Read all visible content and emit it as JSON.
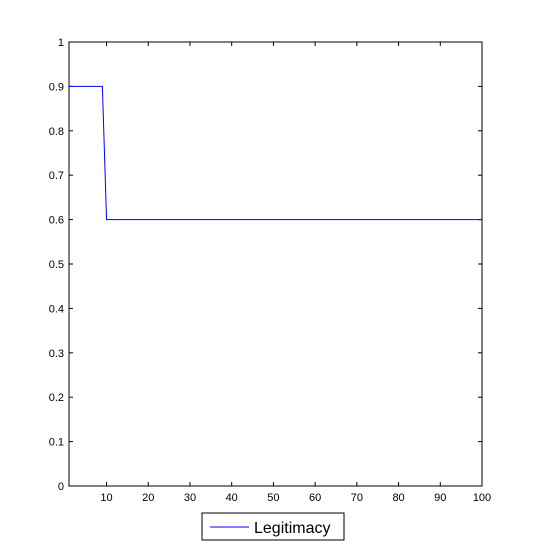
{
  "chart_data": {
    "type": "line",
    "title": "",
    "xlabel": "",
    "ylabel": "",
    "xlim": [
      1,
      100
    ],
    "ylim": [
      0,
      1
    ],
    "xticks": [
      10,
      20,
      30,
      40,
      50,
      60,
      70,
      80,
      90,
      100
    ],
    "yticks": [
      0,
      0.1,
      0.2,
      0.3,
      0.4,
      0.5,
      0.6,
      0.7,
      0.8,
      0.9,
      1
    ],
    "xtick_labels": [
      "10",
      "20",
      "30",
      "40",
      "50",
      "60",
      "70",
      "80",
      "90",
      "100"
    ],
    "ytick_labels": [
      "0",
      "0.1",
      "0.2",
      "0.3",
      "0.4",
      "0.5",
      "0.6",
      "0.7",
      "0.8",
      "0.9",
      "1"
    ],
    "grid": false,
    "legend_position": "bottom-outside",
    "series": [
      {
        "name": "Legitimacy",
        "color": "#0000ff",
        "x": [
          1,
          9,
          10,
          100
        ],
        "y": [
          0.9,
          0.9,
          0.6,
          0.6
        ]
      }
    ]
  }
}
